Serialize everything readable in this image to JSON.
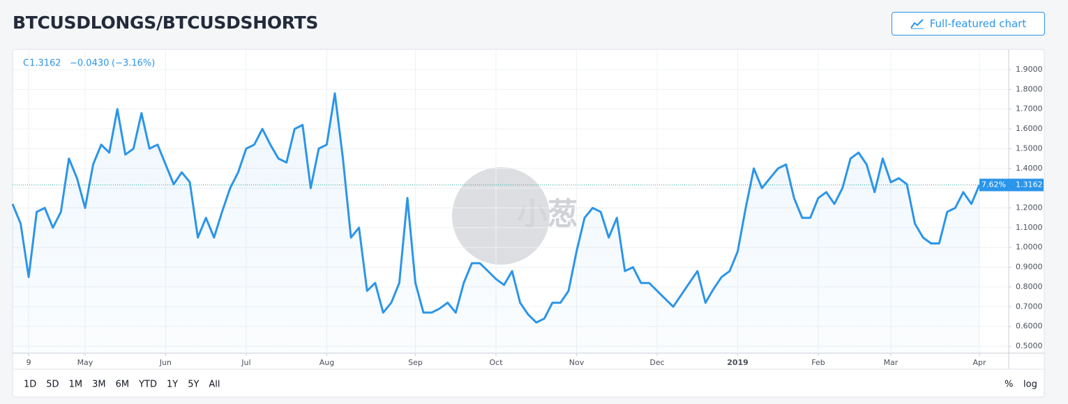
{
  "title": "BTCUSDLONGS/BTCUSDSHORTS",
  "button": "Full-featured chart",
  "legend": {
    "close": "C1.3162",
    "change": "−0.0430",
    "change_percent": "(−3.16%)"
  },
  "price_badge": {
    "percent": "7.62%",
    "price": "1.3162"
  },
  "watermark": "小葱",
  "range_buttons": [
    "1D",
    "5D",
    "1M",
    "3M",
    "6M",
    "YTD",
    "1Y",
    "5Y",
    "All"
  ],
  "scale_buttons": [
    "%",
    "log"
  ],
  "chart_data": {
    "type": "line",
    "color": "#2b95e9",
    "grid": true,
    "categories": [
      null,
      null,
      "9",
      null,
      null,
      null,
      null,
      null,
      null,
      "May",
      null,
      null,
      null,
      null,
      null,
      null,
      null,
      null,
      null,
      "Jun",
      null,
      null,
      null,
      null,
      null,
      null,
      null,
      null,
      null,
      "Jul",
      null,
      null,
      null,
      null,
      null,
      null,
      null,
      null,
      null,
      "Aug",
      null,
      null,
      null,
      null,
      null,
      null,
      null,
      null,
      null,
      null,
      "Sep",
      null,
      null,
      null,
      null,
      null,
      null,
      null,
      null,
      null,
      "Oct",
      null,
      null,
      null,
      null,
      null,
      null,
      null,
      null,
      null,
      "Nov",
      null,
      null,
      null,
      null,
      null,
      null,
      null,
      null,
      null,
      "Dec",
      null,
      null,
      null,
      null,
      null,
      null,
      null,
      null,
      null,
      "2019",
      null,
      null,
      null,
      null,
      null,
      null,
      null,
      null,
      null,
      "Feb",
      null,
      null,
      null,
      null,
      null,
      null,
      null,
      null,
      "Mar",
      null,
      null,
      null,
      null,
      null,
      null,
      null,
      null,
      null,
      null,
      "Apr"
    ],
    "values": [
      1.22,
      1.12,
      0.85,
      1.18,
      1.2,
      1.1,
      1.18,
      1.45,
      1.35,
      1.2,
      1.42,
      1.52,
      1.48,
      1.7,
      1.47,
      1.5,
      1.68,
      1.5,
      1.52,
      1.42,
      1.32,
      1.38,
      1.33,
      1.05,
      1.15,
      1.05,
      1.18,
      1.3,
      1.38,
      1.5,
      1.52,
      1.6,
      1.52,
      1.45,
      1.43,
      1.6,
      1.62,
      1.3,
      1.5,
      1.52,
      1.78,
      1.45,
      1.05,
      1.1,
      0.78,
      0.82,
      0.67,
      0.72,
      0.82,
      1.25,
      0.82,
      0.67,
      0.67,
      0.69,
      0.72,
      0.67,
      0.82,
      0.92,
      0.92,
      0.88,
      0.84,
      0.81,
      0.88,
      0.72,
      0.66,
      0.62,
      0.64,
      0.72,
      0.72,
      0.78,
      0.98,
      1.15,
      1.2,
      1.18,
      1.05,
      1.15,
      0.88,
      0.9,
      0.82,
      0.82,
      0.78,
      0.74,
      0.7,
      0.76,
      0.82,
      0.88,
      0.72,
      0.79,
      0.85,
      0.88,
      0.98,
      1.2,
      1.4,
      1.3,
      1.35,
      1.4,
      1.42,
      1.25,
      1.15,
      1.15,
      1.25,
      1.28,
      1.22,
      1.3,
      1.45,
      1.48,
      1.42,
      1.28,
      1.45,
      1.33,
      1.35,
      1.32,
      1.12,
      1.05,
      1.02,
      1.02,
      1.18,
      1.2,
      1.28,
      1.22,
      1.3162
    ],
    "ylim": [
      0.4647,
      2.0022
    ],
    "yticks": [
      {
        "value": 1.9,
        "label": "1.9000"
      },
      {
        "value": 1.8,
        "label": "1.8000"
      },
      {
        "value": 1.7,
        "label": "1.7000"
      },
      {
        "value": 1.6,
        "label": "1.6000"
      },
      {
        "value": 1.5,
        "label": "1.5000"
      },
      {
        "value": 1.4,
        "label": "1.4000"
      },
      {
        "value": 1.3,
        "label": "1.3000"
      },
      {
        "value": 1.2,
        "label": "1.2000"
      },
      {
        "value": 1.1,
        "label": "1.1000"
      },
      {
        "value": 1.0,
        "label": "1.0000"
      },
      {
        "value": 0.9,
        "label": "0.9000"
      },
      {
        "value": 0.8,
        "label": "0.8000"
      },
      {
        "value": 0.7,
        "label": "0.7000"
      },
      {
        "value": 0.6,
        "label": "0.6000"
      },
      {
        "value": 0.5,
        "label": "0.5000"
      }
    ]
  }
}
